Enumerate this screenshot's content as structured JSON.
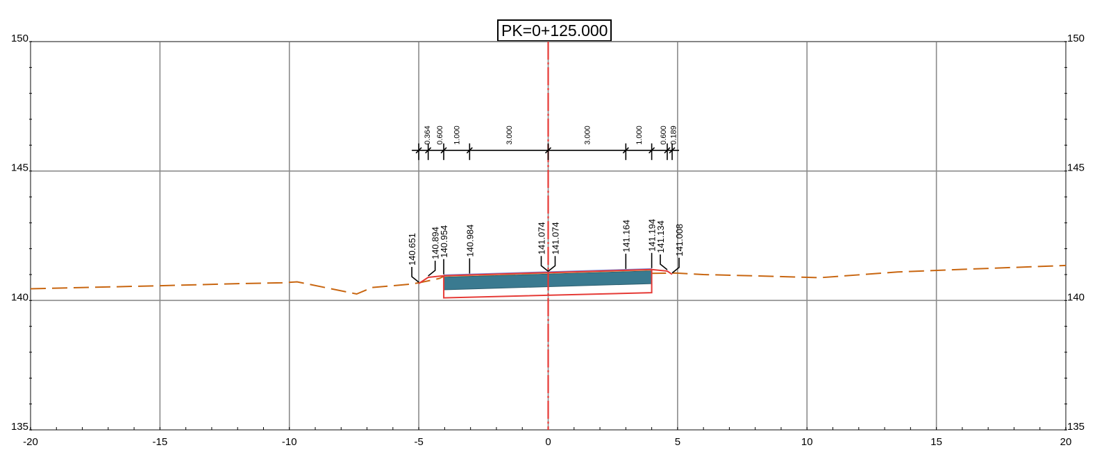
{
  "title": "PK=0+125.000",
  "chart_data": {
    "type": "cross-section",
    "xlim": [
      -20,
      20
    ],
    "ylim": [
      135,
      150
    ],
    "x_ticks": [
      "-20",
      "-15",
      "-10",
      "-5",
      "0",
      "5",
      "10",
      "15",
      "20"
    ],
    "y_ticks_left": [
      "150",
      "145",
      "140",
      "135"
    ],
    "y_ticks_right": [
      "150",
      "145",
      "140",
      "135"
    ],
    "grid": true,
    "axis_line_color": "#e53935",
    "terrain_color": "#c8650f",
    "surface_color": "#e53935",
    "pavement_color": "#3a7a90",
    "terrain": [
      [
        -20,
        140.45
      ],
      [
        -15,
        140.57
      ],
      [
        -12,
        140.65
      ],
      [
        -10.3,
        140.68
      ],
      [
        -9.7,
        140.72
      ],
      [
        -7.4,
        140.25
      ],
      [
        -6.8,
        140.5
      ],
      [
        -6.0,
        140.57
      ],
      [
        -5.3,
        140.63
      ],
      [
        -4.9,
        140.7
      ],
      [
        -4.2,
        140.85
      ],
      [
        -4.0,
        140.95
      ],
      [
        4.9,
        141.06
      ],
      [
        6.0,
        141.0
      ],
      [
        8.0,
        140.95
      ],
      [
        10.5,
        140.88
      ],
      [
        13.5,
        141.1
      ],
      [
        16.0,
        141.2
      ],
      [
        20.0,
        141.35
      ]
    ],
    "finished_surface": [
      [
        -5.0,
        140.651
      ],
      [
        -4.636,
        140.894
      ],
      [
        -4.036,
        140.954
      ],
      [
        -3.036,
        140.984
      ],
      [
        0,
        141.074
      ],
      [
        3.0,
        141.164
      ],
      [
        4.0,
        141.194
      ],
      [
        4.6,
        141.134
      ],
      [
        4.789,
        141.008
      ]
    ],
    "subgrade": [
      [
        -4.036,
        140.954
      ],
      [
        -4.036,
        140.1
      ],
      [
        4.0,
        140.3
      ],
      [
        4.0,
        141.194
      ]
    ],
    "pavement": [
      [
        -4.036,
        140.9
      ],
      [
        -3.036,
        140.93
      ],
      [
        0,
        141.02
      ],
      [
        3.0,
        141.11
      ],
      [
        4.0,
        141.14
      ],
      [
        4.0,
        140.65
      ],
      [
        3.0,
        140.62
      ],
      [
        0,
        140.53
      ],
      [
        -3.036,
        140.44
      ],
      [
        -4.036,
        140.41
      ]
    ],
    "dimension_line": {
      "y": 145.8,
      "x": [
        -5.0,
        -4.636,
        -4.036,
        -3.036,
        0,
        3.0,
        4.0,
        4.6,
        4.789
      ]
    },
    "dimensions": [
      {
        "from": -5.0,
        "to": -4.636,
        "label": "0.364"
      },
      {
        "from": -4.636,
        "to": -4.036,
        "label": "0.600"
      },
      {
        "from": -4.036,
        "to": -3.036,
        "label": "1.000"
      },
      {
        "from": -3.036,
        "to": 0,
        "label": "3.000"
      },
      {
        "from": 0,
        "to": 3.0,
        "label": "3.000"
      },
      {
        "from": 3.0,
        "to": 4.0,
        "label": "1.000"
      },
      {
        "from": 4.0,
        "to": 4.6,
        "label": "0.600"
      },
      {
        "from": 4.6,
        "to": 4.789,
        "label": "0.189"
      }
    ],
    "elevation_labels": [
      {
        "x": -5.0,
        "y": 140.651,
        "label": "140.651",
        "dir": -1
      },
      {
        "x": -4.636,
        "y": 140.894,
        "label": "140.894",
        "dir": 1
      },
      {
        "x": -4.036,
        "y": 140.954,
        "label": "140.954",
        "dir": 0
      },
      {
        "x": -3.036,
        "y": 140.984,
        "label": "140.984",
        "dir": 0
      },
      {
        "x": 0,
        "y": 141.074,
        "label": "141.074",
        "dir": -1
      },
      {
        "x": 0,
        "y": 141.074,
        "label": "141.074",
        "dir": 1
      },
      {
        "x": 3.0,
        "y": 141.164,
        "label": "141.164",
        "dir": 0
      },
      {
        "x": 4.0,
        "y": 141.194,
        "label": "141.194",
        "dir": 0
      },
      {
        "x": 4.6,
        "y": 141.134,
        "label": "141.134",
        "dir": -1
      },
      {
        "x": 4.789,
        "y": 141.008,
        "label": "141.008",
        "dir": 1
      }
    ]
  }
}
